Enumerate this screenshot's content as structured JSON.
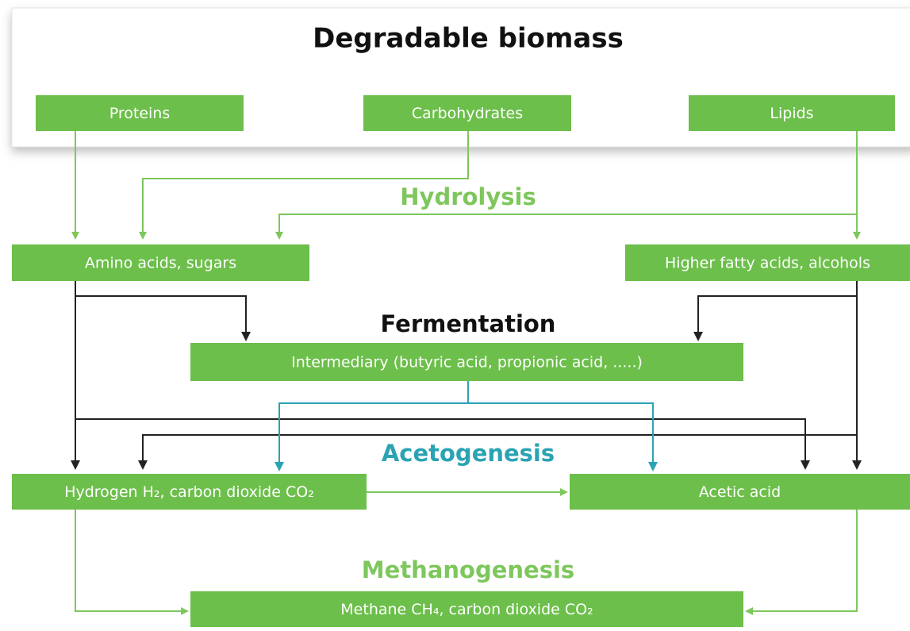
{
  "title": "Degradable biomass",
  "stages": [
    "Hydrolysis",
    "Fermentation",
    "Acetogenesis",
    "Methanogenesis"
  ],
  "nodes": [
    {
      "label": "Proteins"
    },
    {
      "label": "Carbohydrates"
    },
    {
      "label": "Lipids"
    },
    {
      "label": "Amino acids, sugars"
    },
    {
      "label": "Higher fatty acids, alcohols"
    },
    {
      "label": "Intermediary (butyric acid, propionic acid, .....)"
    },
    {
      "label": "Hydrogen H₂, carbon dioxide CO₂"
    },
    {
      "label": "Acetic acid"
    },
    {
      "label": "Methane CH₄, carbon dioxide CO₂"
    }
  ]
}
